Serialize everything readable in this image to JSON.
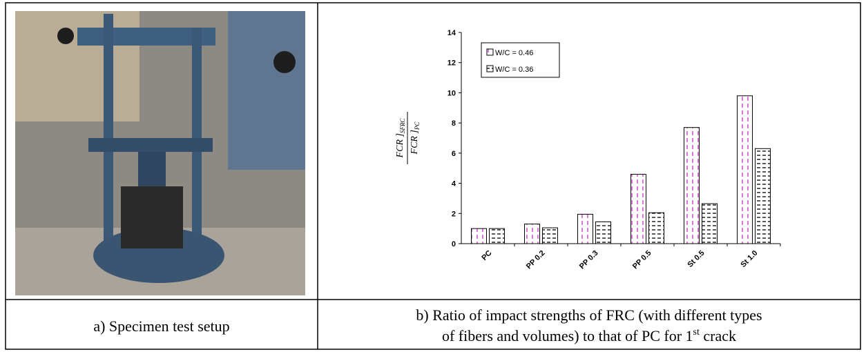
{
  "caption_a": "a) Specimen test setup",
  "caption_b": {
    "line1": "b) Ratio of impact strengths of FRC (with different types",
    "line2": "of fibers and volumes) to that of PC for 1",
    "sup": "st",
    "tail": " crack"
  },
  "chart_data": {
    "type": "bar",
    "y_label": {
      "numerator": "FCR ]",
      "numerator_sub": "SFRC",
      "denominator": "FCR ]",
      "denominator_sub": "PC"
    },
    "categories": [
      "PC",
      "PP 0.2",
      "PP 0.3",
      "PP 0.5",
      "St 0.5",
      "St 1.0"
    ],
    "series": [
      {
        "name": "W/C = 0.46",
        "color": "#cc33cc",
        "values": [
          1.0,
          1.3,
          1.95,
          4.6,
          7.7,
          9.8
        ]
      },
      {
        "name": "W/C = 0.36",
        "color": "#000000",
        "values": [
          1.0,
          1.05,
          1.45,
          2.05,
          2.65,
          6.3
        ]
      }
    ],
    "ylim": [
      0,
      14
    ],
    "yticks": [
      0,
      2,
      4,
      6,
      8,
      10,
      12,
      14
    ],
    "grid": false,
    "legend": "top-left"
  }
}
